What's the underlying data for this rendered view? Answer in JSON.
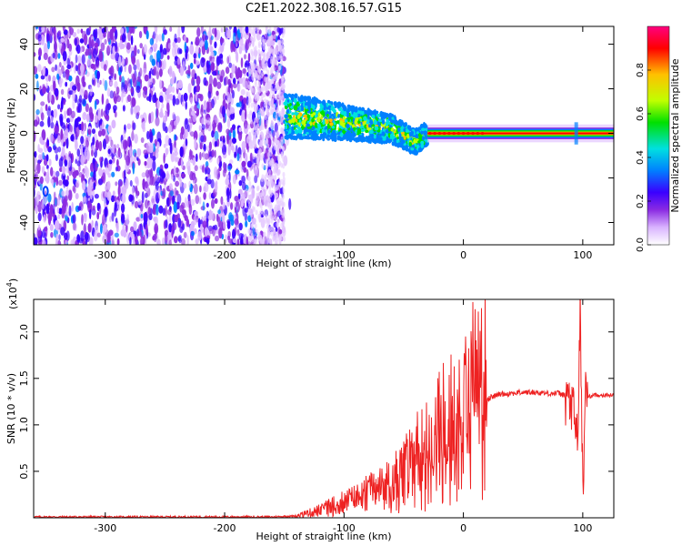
{
  "title": "C2E1.2022.308.16.57.G15",
  "chart_data": [
    {
      "type": "heatmap",
      "xlabel": "Height of straight line (km)",
      "ylabel": "Frequency (Hz)",
      "xlim": [
        -360,
        126
      ],
      "ylim": [
        -50,
        48
      ],
      "xticks": [
        -300,
        -200,
        -100,
        0,
        100
      ],
      "yticks": [
        -40,
        -20,
        0,
        20,
        40
      ],
      "colorbar": {
        "label": "Normalized spectral amplitude",
        "range": [
          0.0,
          1.0
        ],
        "ticks": [
          "0.0",
          "0.2",
          "0.4",
          "0.6",
          "0.8"
        ],
        "colors": [
          "#ffffff",
          "#d9b3ff",
          "#8a2be2",
          "#3a00ff",
          "#0080ff",
          "#00e0e0",
          "#00e000",
          "#c0ff00",
          "#ffc000",
          "#ff0000",
          "#ff0080"
        ]
      },
      "regions": [
        {
          "name": "noise",
          "x_range": [
            -360,
            -150
          ],
          "freq_range": [
            -50,
            48
          ],
          "amplitude": "low (0.0-0.2)"
        },
        {
          "name": "signal-onset",
          "x_range": [
            -150,
            -30
          ],
          "center_freq": [
            [
              -150,
              8
            ],
            [
              -100,
              5
            ],
            [
              -60,
              2
            ],
            [
              -40,
              -4
            ],
            [
              -30,
              0
            ]
          ],
          "amplitude": "0.3-0.7"
        },
        {
          "name": "steady-signal",
          "x_range": [
            -30,
            126
          ],
          "center_freq": 0,
          "amplitude": "0.9-1.0"
        }
      ]
    },
    {
      "type": "line",
      "xlabel": "Height of straight line (km)",
      "ylabel": "SNR (10 * v/v)",
      "yscale_label": "(x10",
      "yscale_exp": "4",
      "yscale_close": ")",
      "xlim": [
        -360,
        126
      ],
      "ylim": [
        0,
        2.35
      ],
      "xticks": [
        -300,
        -200,
        -100,
        0,
        100
      ],
      "yticks": [
        "0.5",
        "1.0",
        "1.5",
        "2.0"
      ],
      "series": [
        {
          "color": "#ee2222",
          "x": [
            -360,
            -320,
            -280,
            -240,
            -200,
            -160,
            -140,
            -130,
            -120,
            -110,
            -100,
            -90,
            -80,
            -70,
            -60,
            -50,
            -40,
            -30,
            -20,
            -15,
            -10,
            -5,
            0,
            10,
            20,
            30,
            40,
            50,
            60,
            70,
            80,
            88,
            92,
            96,
            98,
            100,
            102,
            104,
            110,
            126
          ],
          "y": [
            0.01,
            0.01,
            0.01,
            0.01,
            0.01,
            0.01,
            0.02,
            0.05,
            0.08,
            0.12,
            0.15,
            0.2,
            0.25,
            0.3,
            0.35,
            0.45,
            0.55,
            0.7,
            0.85,
            0.95,
            0.95,
            1.0,
            1.05,
            1.2,
            1.28,
            1.33,
            1.34,
            1.35,
            1.35,
            1.34,
            1.34,
            1.3,
            1.1,
            0.9,
            2.3,
            0.2,
            1.35,
            1.3,
            1.32,
            1.32
          ]
        }
      ]
    }
  ]
}
